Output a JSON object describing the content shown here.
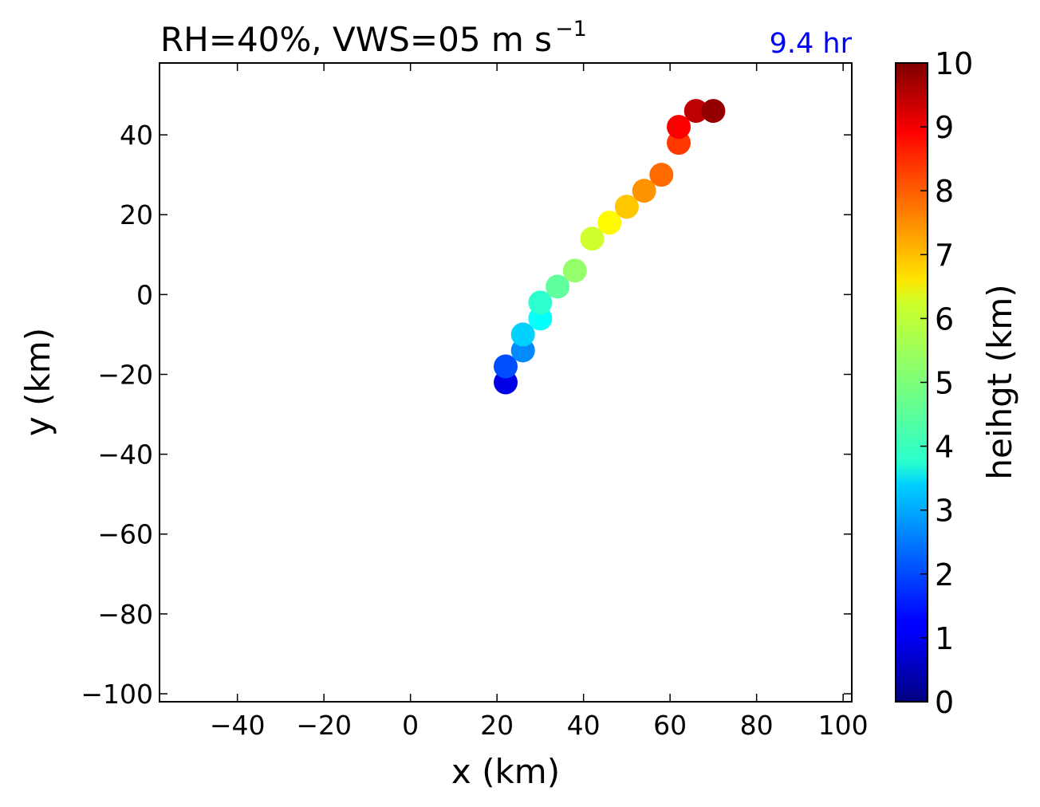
{
  "chart_data": {
    "type": "scatter",
    "title": "RH=40%, VWS=05 m s",
    "title_superscript": "−1",
    "annotation": "9.4 hr",
    "annotation_color": "#0000ff",
    "xlabel": "x (km)",
    "ylabel": "y (km)",
    "xlim": [
      -58,
      102
    ],
    "ylim": [
      -102,
      58
    ],
    "xticks": [
      -40,
      -20,
      0,
      20,
      40,
      60,
      80,
      100
    ],
    "yticks": [
      -100,
      -80,
      -60,
      -40,
      -20,
      0,
      20,
      40
    ],
    "grid": false,
    "colormap": "jet",
    "colorbar": {
      "label": "heihgt (km)",
      "min": 0,
      "max": 10,
      "ticks": [
        0,
        1,
        2,
        3,
        4,
        5,
        6,
        7,
        8,
        9,
        10
      ]
    },
    "points": [
      {
        "x": 22,
        "y": -22,
        "height": 1.0
      },
      {
        "x": 22,
        "y": -18,
        "height": 2.0
      },
      {
        "x": 26,
        "y": -14,
        "height": 2.6
      },
      {
        "x": 26,
        "y": -10,
        "height": 3.3
      },
      {
        "x": 30,
        "y": -6,
        "height": 3.8
      },
      {
        "x": 30,
        "y": -2,
        "height": 4.2
      },
      {
        "x": 34,
        "y": 2,
        "height": 4.7
      },
      {
        "x": 38,
        "y": 6,
        "height": 5.2
      },
      {
        "x": 42,
        "y": 14,
        "height": 5.8
      },
      {
        "x": 46,
        "y": 18,
        "height": 6.3
      },
      {
        "x": 50,
        "y": 22,
        "height": 6.8
      },
      {
        "x": 54,
        "y": 26,
        "height": 7.3
      },
      {
        "x": 58,
        "y": 30,
        "height": 7.7
      },
      {
        "x": 62,
        "y": 38,
        "height": 8.2
      },
      {
        "x": 62,
        "y": 42,
        "height": 8.8
      },
      {
        "x": 66,
        "y": 46,
        "height": 9.4
      },
      {
        "x": 70,
        "y": 46,
        "height": 9.8
      }
    ]
  }
}
